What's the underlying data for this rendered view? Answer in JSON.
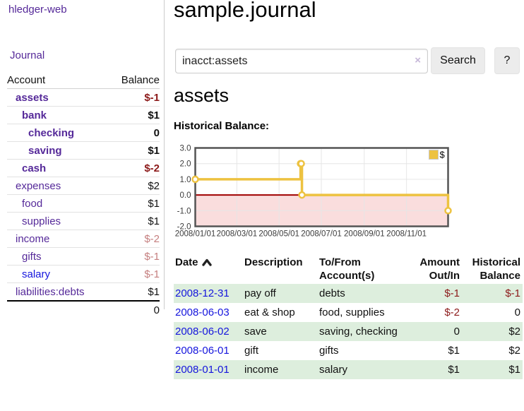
{
  "app": {
    "title": "hledger-web"
  },
  "colors": {
    "link_purple": "#552999",
    "link_blue": "#1515dd",
    "negative": "#8c1a1a",
    "negative_dim": "#c57f7f",
    "row_green": "#ddeedd",
    "series_gold": "#EDC240"
  },
  "sidebar": {
    "journal_link": "Journal",
    "accounts_table": {
      "headers": {
        "account": "Account",
        "balance": "Balance"
      },
      "rows": [
        {
          "name": "assets",
          "balance": "$-1"
        },
        {
          "name": "bank",
          "balance": "$1"
        },
        {
          "name": "checking",
          "balance": "0"
        },
        {
          "name": "saving",
          "balance": "$1"
        },
        {
          "name": "cash",
          "balance": "$-2"
        },
        {
          "name": "expenses",
          "balance": "$2"
        },
        {
          "name": "food",
          "balance": "$1"
        },
        {
          "name": "supplies",
          "balance": "$1"
        },
        {
          "name": "income",
          "balance": "$-2"
        },
        {
          "name": "gifts",
          "balance": "$-1"
        },
        {
          "name": "salary",
          "balance": "$-1"
        },
        {
          "name": "liabilities:debts",
          "balance": "$1"
        }
      ],
      "total": "0"
    }
  },
  "main": {
    "title": "sample.journal",
    "search": {
      "value": "inacct:assets",
      "clear_icon": "×",
      "button_label": "Search",
      "help_label": "?"
    },
    "account_heading": "assets",
    "chart_heading": "Historical Balance:",
    "register": {
      "headers": {
        "date": "Date",
        "description": "Description",
        "tofrom1": "To/From",
        "tofrom2": "Account(s)",
        "amount1": "Amount",
        "amount2": "Out/In",
        "hist1": "Historical",
        "hist2": "Balance"
      },
      "rows": [
        {
          "date": "2008-12-31",
          "description": "pay off",
          "accounts": "debts",
          "amount": "$-1",
          "balance": "$-1"
        },
        {
          "date": "2008-06-03",
          "description": "eat & shop",
          "accounts": "food, supplies",
          "amount": "$-2",
          "balance": "0"
        },
        {
          "date": "2008-06-02",
          "description": "save",
          "accounts": "saving, checking",
          "amount": "0",
          "balance": "$2"
        },
        {
          "date": "2008-06-01",
          "description": "gift",
          "accounts": "gifts",
          "amount": "$1",
          "balance": "$2"
        },
        {
          "date": "2008-01-01",
          "description": "income",
          "accounts": "salary",
          "amount": "$1",
          "balance": "$1"
        }
      ]
    }
  },
  "chart_data": {
    "type": "line",
    "title": "Historical Balance:",
    "step": true,
    "ylim": [
      -2,
      3
    ],
    "x_domain_days": [
      0,
      365
    ],
    "yticks": [
      {
        "v": 3,
        "label": "3.0"
      },
      {
        "v": 2,
        "label": "2.0"
      },
      {
        "v": 1,
        "label": "1.0"
      },
      {
        "v": 0,
        "label": "0.0"
      },
      {
        "v": -1,
        "label": "-1.0"
      },
      {
        "v": -2,
        "label": "-2.0"
      }
    ],
    "xticks": [
      {
        "day": 0,
        "label": "2008/01/01"
      },
      {
        "day": 60,
        "label": "2008/03/01"
      },
      {
        "day": 121,
        "label": "2008/05/01"
      },
      {
        "day": 182,
        "label": "2008/07/01"
      },
      {
        "day": 244,
        "label": "2008/09/01"
      },
      {
        "day": 305,
        "label": "2008/11/01"
      }
    ],
    "series": [
      {
        "name": "$",
        "color": "#EDC240",
        "points": [
          {
            "day": 0,
            "v": 1
          },
          {
            "day": 152,
            "v": 2
          },
          {
            "day": 153,
            "v": 2
          },
          {
            "day": 154,
            "v": 0
          },
          {
            "day": 365,
            "v": -1
          }
        ]
      }
    ],
    "colors": {
      "negative_region": "#fadddd",
      "zero_line": "#a00000",
      "grid": "#e6e6e6",
      "border": "#545454"
    },
    "legend_position": "top-right",
    "grid": true
  }
}
